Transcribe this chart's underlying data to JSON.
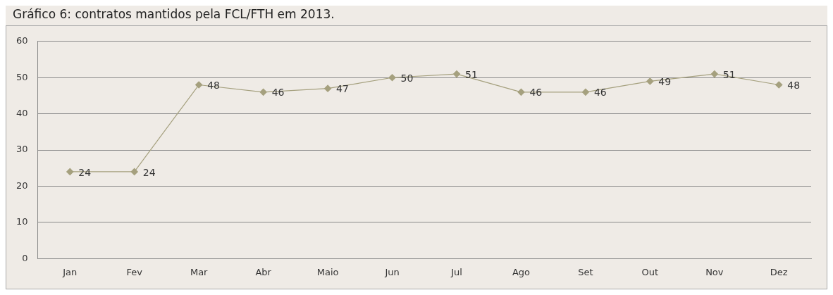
{
  "chart_data": {
    "type": "line",
    "title": "Gráfico 6: contratos mantidos pela FCL/FTH em 2013.",
    "categories": [
      "Jan",
      "Fev",
      "Mar",
      "Abr",
      "Maio",
      "Jun",
      "Jul",
      "Ago",
      "Set",
      "Out",
      "Nov",
      "Dez"
    ],
    "series": [
      {
        "color": "#a5a07e",
        "values": [
          24,
          24,
          48,
          46,
          47,
          50,
          51,
          46,
          46,
          49,
          51,
          48
        ]
      }
    ],
    "ylim": [
      0,
      60
    ],
    "yticks": [
      0,
      10,
      20,
      30,
      40,
      50,
      60
    ],
    "grid": "y",
    "marker": "diamond",
    "line_style": "solid",
    "data_labels": true,
    "legend": false
  }
}
